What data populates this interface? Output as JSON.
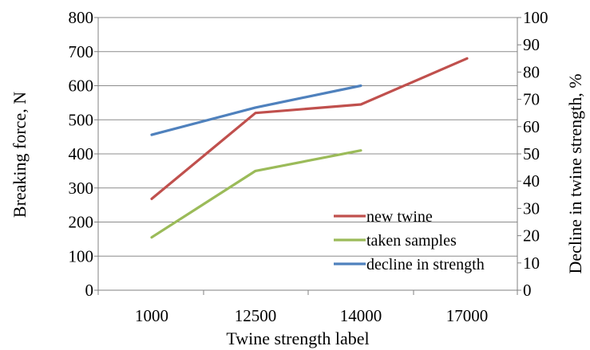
{
  "chart_data": {
    "type": "line",
    "categories": [
      "1000",
      "12500",
      "14000",
      "17000"
    ],
    "x_positions": [
      0,
      1,
      2,
      3
    ],
    "xlabel": "Twine strength label",
    "ylabel": "Breaking force, N",
    "ylabel_right": "Decline in twine strength, %",
    "ylim": [
      0,
      800
    ],
    "ylim_right": [
      0,
      100
    ],
    "y_ticks": [
      0,
      100,
      200,
      300,
      400,
      500,
      600,
      700,
      800
    ],
    "y_ticks_right": [
      0,
      10,
      20,
      30,
      40,
      50,
      60,
      70,
      80,
      90,
      100
    ],
    "grid": "horizontal",
    "legend_position": "bottom-right",
    "series": [
      {
        "name": "new twine",
        "axis": "left",
        "color": "#c0504d",
        "x": [
          0,
          1,
          2,
          3
        ],
        "values": [
          268,
          520,
          545,
          680
        ]
      },
      {
        "name": "taken samples",
        "axis": "left",
        "color": "#9bbb59",
        "x": [
          0,
          1,
          2
        ],
        "values": [
          155,
          350,
          410
        ]
      },
      {
        "name": "decline in strength",
        "axis": "right",
        "color": "#4f81bd",
        "x": [
          0,
          1,
          2
        ],
        "values": [
          57,
          67,
          75
        ]
      }
    ]
  }
}
